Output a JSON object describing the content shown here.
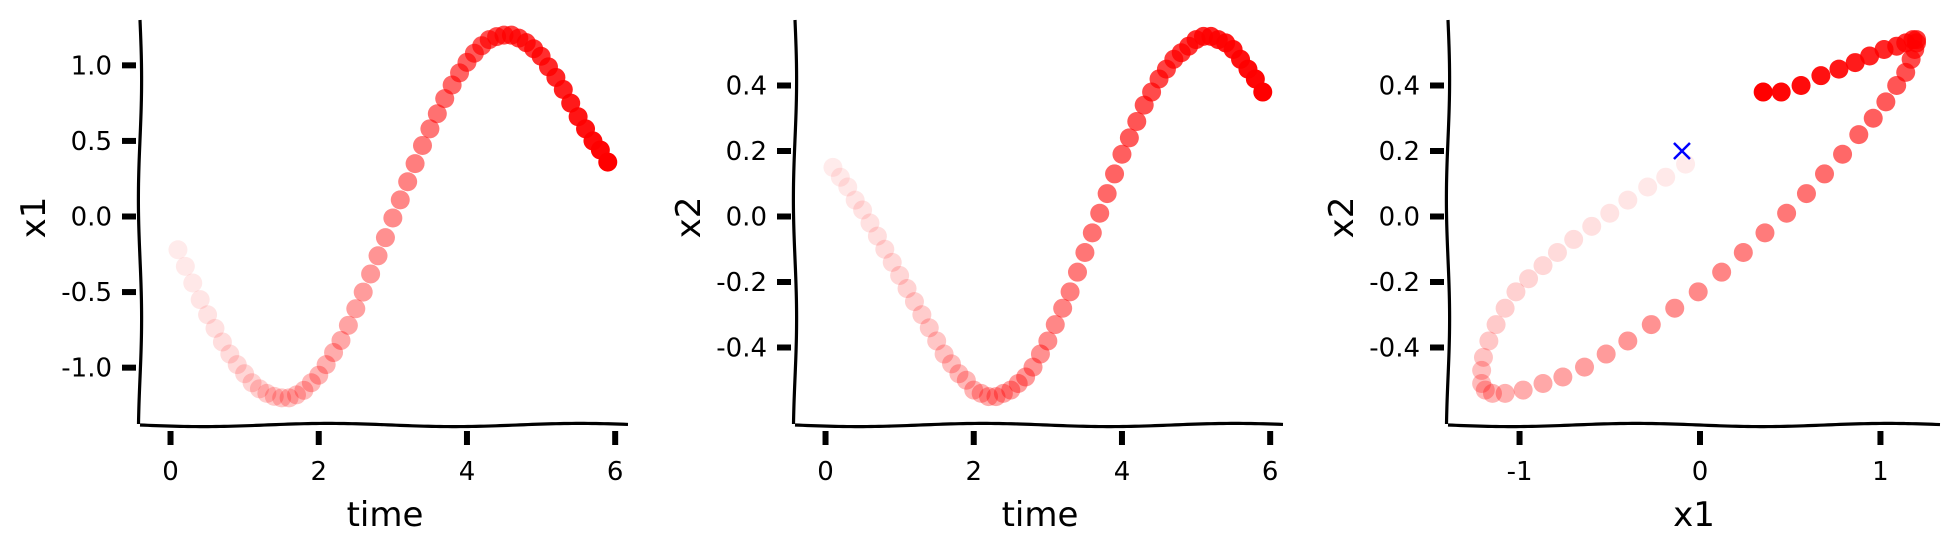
{
  "chart_data": [
    {
      "type": "scatter",
      "xlabel": "time",
      "ylabel": "x1",
      "xlim": [
        -0.25,
        6.2
      ],
      "ylim": [
        -1.3,
        1.3
      ],
      "xticks": [
        0,
        2,
        4,
        6
      ],
      "xtick_labels": [
        "0",
        "2",
        "4",
        "6"
      ],
      "yticks": [
        -1.0,
        -0.5,
        0.0,
        0.5,
        1.0
      ],
      "ytick_labels": [
        "-1.0",
        "-0.5",
        "0.0",
        "0.5",
        "1.0"
      ],
      "grid": false,
      "marker_color": "#ff0000",
      "marker_opacity": "increasing from faint to opaque with time",
      "x": [
        0.1,
        0.2,
        0.3,
        0.4,
        0.5,
        0.6,
        0.7,
        0.8,
        0.9,
        1.0,
        1.1,
        1.2,
        1.3,
        1.4,
        1.5,
        1.6,
        1.7,
        1.8,
        1.9,
        2.0,
        2.1,
        2.2,
        2.3,
        2.4,
        2.5,
        2.6,
        2.7,
        2.8,
        2.9,
        3.0,
        3.1,
        3.2,
        3.3,
        3.4,
        3.5,
        3.6,
        3.7,
        3.8,
        3.9,
        4.0,
        4.1,
        4.2,
        4.3,
        4.4,
        4.5,
        4.6,
        4.7,
        4.8,
        4.9,
        5.0,
        5.1,
        5.2,
        5.3,
        5.4,
        5.5,
        5.6,
        5.7,
        5.8,
        5.9
      ],
      "y": [
        -0.22,
        -0.33,
        -0.44,
        -0.55,
        -0.65,
        -0.74,
        -0.83,
        -0.91,
        -0.98,
        -1.04,
        -1.1,
        -1.14,
        -1.17,
        -1.19,
        -1.2,
        -1.2,
        -1.18,
        -1.15,
        -1.1,
        -1.05,
        -0.98,
        -0.9,
        -0.82,
        -0.72,
        -0.61,
        -0.5,
        -0.38,
        -0.26,
        -0.14,
        -0.01,
        0.11,
        0.23,
        0.35,
        0.47,
        0.58,
        0.68,
        0.78,
        0.87,
        0.95,
        1.02,
        1.08,
        1.13,
        1.17,
        1.19,
        1.2,
        1.2,
        1.18,
        1.15,
        1.11,
        1.06,
        0.99,
        0.92,
        0.84,
        0.75,
        0.66,
        0.58,
        0.5,
        0.44,
        0.36
      ]
    },
    {
      "type": "scatter",
      "xlabel": "time",
      "ylabel": "x2",
      "xlim": [
        -0.25,
        6.2
      ],
      "ylim": [
        -0.6,
        0.6
      ],
      "xticks": [
        0,
        2,
        4,
        6
      ],
      "xtick_labels": [
        "0",
        "2",
        "4",
        "6"
      ],
      "yticks": [
        -0.4,
        -0.2,
        0.0,
        0.2,
        0.4
      ],
      "ytick_labels": [
        "-0.4",
        "-0.2",
        "0.0",
        "0.2",
        "0.4"
      ],
      "grid": false,
      "marker_color": "#ff0000",
      "marker_opacity": "increasing from faint to opaque with time",
      "x": [
        0.1,
        0.2,
        0.3,
        0.4,
        0.5,
        0.6,
        0.7,
        0.8,
        0.9,
        1.0,
        1.1,
        1.2,
        1.3,
        1.4,
        1.5,
        1.6,
        1.7,
        1.8,
        1.9,
        2.0,
        2.1,
        2.2,
        2.3,
        2.4,
        2.5,
        2.6,
        2.7,
        2.8,
        2.9,
        3.0,
        3.1,
        3.2,
        3.3,
        3.4,
        3.5,
        3.6,
        3.7,
        3.8,
        3.9,
        4.0,
        4.1,
        4.2,
        4.3,
        4.4,
        4.5,
        4.6,
        4.7,
        4.8,
        4.9,
        5.0,
        5.1,
        5.2,
        5.3,
        5.4,
        5.5,
        5.6,
        5.7,
        5.8,
        5.9
      ],
      "y": [
        0.15,
        0.12,
        0.09,
        0.05,
        0.02,
        -0.02,
        -0.06,
        -0.1,
        -0.14,
        -0.18,
        -0.22,
        -0.26,
        -0.3,
        -0.34,
        -0.38,
        -0.42,
        -0.45,
        -0.48,
        -0.5,
        -0.53,
        -0.54,
        -0.55,
        -0.55,
        -0.54,
        -0.53,
        -0.51,
        -0.49,
        -0.46,
        -0.42,
        -0.38,
        -0.33,
        -0.28,
        -0.23,
        -0.17,
        -0.11,
        -0.05,
        0.01,
        0.07,
        0.13,
        0.19,
        0.24,
        0.29,
        0.34,
        0.38,
        0.42,
        0.45,
        0.48,
        0.5,
        0.52,
        0.54,
        0.55,
        0.55,
        0.54,
        0.53,
        0.51,
        0.48,
        0.45,
        0.42,
        0.38
      ]
    },
    {
      "type": "scatter",
      "xlabel": "x1",
      "ylabel": "x2",
      "xlim": [
        -1.33,
        1.33
      ],
      "ylim": [
        -0.6,
        0.6
      ],
      "xticks": [
        -1,
        0,
        1
      ],
      "xtick_labels": [
        "-1",
        "0",
        "1"
      ],
      "yticks": [
        -0.4,
        -0.2,
        0.0,
        0.2,
        0.4
      ],
      "ytick_labels": [
        "-0.4",
        "-0.2",
        "0.0",
        "0.2",
        "0.4"
      ],
      "grid": false,
      "marker_color": "#ff0000",
      "marker_opacity": "increasing from faint to opaque along the trajectory",
      "x": [
        -0.08,
        -0.19,
        -0.29,
        -0.4,
        -0.5,
        -0.6,
        -0.7,
        -0.79,
        -0.87,
        -0.95,
        -1.02,
        -1.08,
        -1.13,
        -1.17,
        -1.2,
        -1.21,
        -1.21,
        -1.19,
        -1.15,
        -1.08,
        -0.98,
        -0.87,
        -0.76,
        -0.64,
        -0.52,
        -0.4,
        -0.27,
        -0.14,
        -0.01,
        0.12,
        0.24,
        0.36,
        0.48,
        0.59,
        0.69,
        0.79,
        0.88,
        0.96,
        1.03,
        1.09,
        1.14,
        1.17,
        1.19,
        1.2,
        1.2,
        1.18,
        1.14,
        1.09,
        1.02,
        0.94,
        0.86,
        0.77,
        0.67,
        0.56,
        0.45,
        0.35
      ],
      "y": [
        0.16,
        0.12,
        0.09,
        0.05,
        0.01,
        -0.03,
        -0.07,
        -0.11,
        -0.15,
        -0.19,
        -0.23,
        -0.28,
        -0.33,
        -0.38,
        -0.43,
        -0.47,
        -0.51,
        -0.53,
        -0.54,
        -0.54,
        -0.53,
        -0.51,
        -0.49,
        -0.46,
        -0.42,
        -0.38,
        -0.33,
        -0.28,
        -0.23,
        -0.17,
        -0.11,
        -0.05,
        0.01,
        0.07,
        0.13,
        0.19,
        0.25,
        0.3,
        0.35,
        0.4,
        0.44,
        0.48,
        0.51,
        0.53,
        0.54,
        0.54,
        0.53,
        0.52,
        0.51,
        0.49,
        0.47,
        0.45,
        0.43,
        0.4,
        0.38,
        0.38
      ]
    }
  ],
  "markers": [
    {
      "panel": 2,
      "symbol": "x",
      "color": "#0000ff",
      "x": -0.1,
      "y": 0.2
    }
  ]
}
